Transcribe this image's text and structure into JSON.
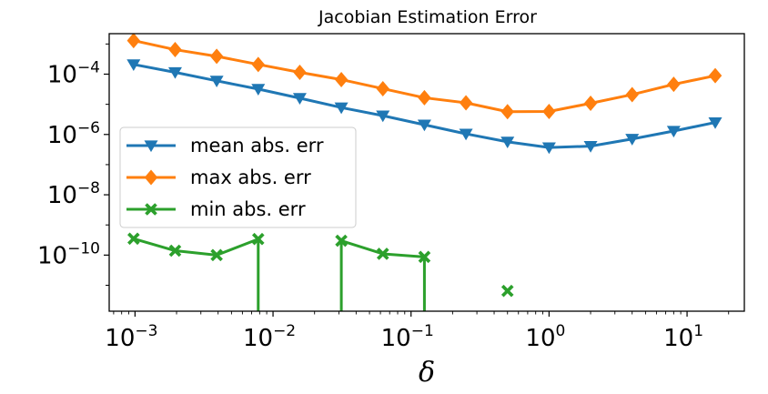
{
  "chart_data": {
    "type": "line",
    "title": "Jacobian Estimation Error",
    "xlabel": "δ",
    "ylabel": "",
    "xscale": "log",
    "yscale": "log",
    "xlim": [
      0.00065,
      26
    ],
    "ylim": [
      1.38e-12,
      0.0022
    ],
    "grid": false,
    "legend_position": "center-left",
    "x_ticks": [
      {
        "base": "10",
        "exp": "−3",
        "value": 0.001
      },
      {
        "base": "10",
        "exp": "−2",
        "value": 0.01
      },
      {
        "base": "10",
        "exp": "−1",
        "value": 0.1
      },
      {
        "base": "10",
        "exp": "0",
        "value": 1
      },
      {
        "base": "10",
        "exp": "1",
        "value": 10
      }
    ],
    "y_ticks": [
      {
        "base": "10",
        "exp": "−10",
        "value": 1e-10
      },
      {
        "base": "10",
        "exp": "−8",
        "value": 1e-08
      },
      {
        "base": "10",
        "exp": "−6",
        "value": 1e-06
      },
      {
        "base": "10",
        "exp": "−4",
        "value": 0.0001
      }
    ],
    "series": [
      {
        "name": "mean abs. err",
        "color": "#1f77b4",
        "marker": "triangle-down",
        "x": [
          0.0009765625,
          0.001953125,
          0.00390625,
          0.0078125,
          0.015625,
          0.03125,
          0.0625,
          0.125,
          0.25,
          0.5,
          1,
          2,
          4,
          8,
          16
        ],
        "y": [
          0.00021,
          0.000115,
          6e-05,
          3.2e-05,
          1.6e-05,
          7.8e-06,
          4.2e-06,
          2.1e-06,
          1.05e-06,
          5.7e-07,
          3.7e-07,
          4.1e-07,
          7.1e-07,
          1.3e-06,
          2.5e-06
        ]
      },
      {
        "name": "max abs. err",
        "color": "#ff7f0e",
        "marker": "diamond",
        "x": [
          0.0009765625,
          0.001953125,
          0.00390625,
          0.0078125,
          0.015625,
          0.03125,
          0.0625,
          0.125,
          0.25,
          0.5,
          1,
          2,
          4,
          8,
          16
        ],
        "y": [
          0.0013,
          0.00065,
          0.00039,
          0.00021,
          0.000115,
          6.6e-05,
          3.3e-05,
          1.65e-05,
          1.12e-05,
          5.7e-06,
          5.8e-06,
          1.08e-05,
          2.1e-05,
          4.6e-05,
          8.9e-05
        ]
      },
      {
        "name": "min abs. err",
        "color": "#2ca02c",
        "marker": "x",
        "segments": [
          {
            "x": [
              0.0009765625,
              0.001953125,
              0.00390625,
              0.0078125
            ],
            "y": [
              3.5e-10,
              1.4e-10,
              1e-10,
              3.4e-10
            ]
          },
          {
            "x": [
              0.03125,
              0.0625,
              0.125
            ],
            "y": [
              3e-10,
              1.1e-10,
              8.7e-11
            ]
          },
          {
            "x": [
              0.5
            ],
            "y": [
              6.5e-12
            ]
          }
        ],
        "drop_to_zero_x": [
          0.0078125,
          0.03125,
          0.125
        ]
      }
    ]
  }
}
